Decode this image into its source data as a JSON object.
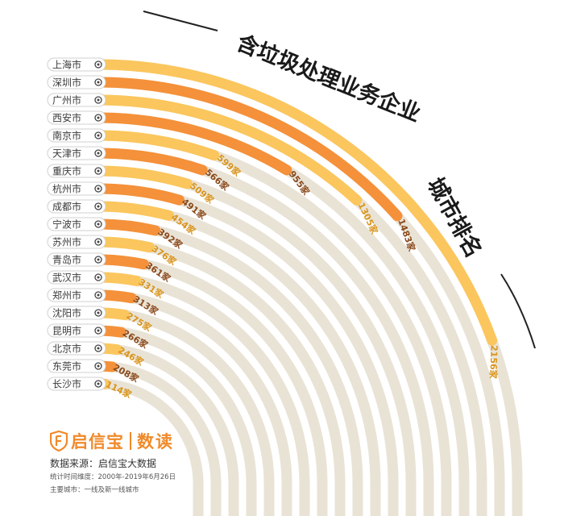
{
  "chart_data": {
    "type": "radial-bar",
    "title": "含垃圾处理业务企业 城市排名",
    "unit_suffix": "家",
    "max_value": 2156,
    "categories": [
      "上海市",
      "深圳市",
      "广州市",
      "西安市",
      "南京市",
      "天津市",
      "重庆市",
      "杭州市",
      "成都市",
      "宁波市",
      "苏州市",
      "青岛市",
      "武汉市",
      "郑州市",
      "沈阳市",
      "昆明市",
      "北京市",
      "东莞市",
      "长沙市"
    ],
    "values": [
      2156,
      1483,
      1305,
      955,
      599,
      566,
      509,
      491,
      454,
      392,
      376,
      361,
      331,
      313,
      275,
      266,
      246,
      208,
      114
    ],
    "value_labels": [
      "2156家",
      "1483家",
      "1305家",
      "955家",
      "599家",
      "566家",
      "509家",
      "491家",
      "454家",
      "392家",
      "376家",
      "361家",
      "331家",
      "313家",
      "275家",
      "266家",
      "246家",
      "208家",
      "114家"
    ],
    "colors": {
      "track": "#e9e3d6",
      "bar_yellow": "#fbc65d",
      "bar_orange": "#f4913a",
      "label_yellow": "#d9951e",
      "label_orange": "#8a4a1c",
      "brand": "#f08a2a"
    }
  },
  "footer": {
    "brand_name": "启信宝",
    "brand_sub": "数读",
    "source": "数据来源：启信宝大数据",
    "note_period": "统计时间维度：2000年-2019年6月26日",
    "note_cities": "主要城市：一线及新一线城市"
  }
}
